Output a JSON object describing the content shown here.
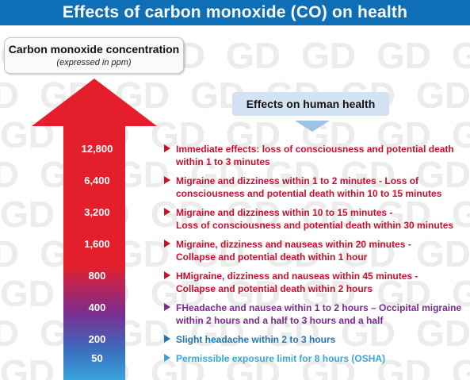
{
  "title": "Effects of carbon monoxide (CO) on health",
  "concentration_box": {
    "title": "Carbon monoxide concentration",
    "subtitle": "(expressed in ppm)"
  },
  "effects_box": {
    "label": "Effects on human health"
  },
  "watermark_text": "GD",
  "colors": {
    "title_bar": "#0f6fb6",
    "red_text": "#c8102e",
    "purple_text": "#7b2a8e",
    "blue_text": "#1f74b3",
    "light_blue_text": "#3aa6d8",
    "arrow_top": "#e41f2b",
    "arrow_mid": "#7a2d91",
    "arrow_bottom": "#39a4dd"
  },
  "levels": [
    {
      "ppm": "12,800",
      "lines": [
        "Immediate effects: loss of consciousness and potential death",
        "within 1 to 3 minutes"
      ],
      "color": "#c8102e"
    },
    {
      "ppm": "6,400",
      "lines": [
        "Migraine and dizziness within 1 to 2 minutes - Loss of",
        "consciousness and potential death within 10 to 15 minutes"
      ],
      "color": "#c8102e"
    },
    {
      "ppm": "3,200",
      "lines": [
        "Migraine and dizziness within 10 to 15 minutes -",
        "Loss of consciousness and potential death within 30 minutes"
      ],
      "color": "#c8102e"
    },
    {
      "ppm": "1,600",
      "lines": [
        "Migraine, dizziness and nauseas within 20 minutes -",
        "Collapse and potential death within 1 hour"
      ],
      "color": "#c8102e"
    },
    {
      "ppm": "800",
      "lines": [
        "HMigraine, dizziness and nauseas within 45 minutes -",
        "Collapse and potential death within 2 hours"
      ],
      "color": "#c8102e"
    },
    {
      "ppm": "400",
      "lines": [
        "FHeadache and nausea within 1 to 2 hours – Occipital migraine",
        "within 2 hours and a half to 3 hours and a half"
      ],
      "color": "#7b2a8e"
    },
    {
      "ppm": "200",
      "lines": [
        "Slight headache within 2 to 3 hours"
      ],
      "color": "#1f74b3"
    },
    {
      "ppm": "50",
      "lines": [
        "Permissible exposure limit for 8 hours (OSHA)"
      ],
      "color": "#3aa6d8"
    }
  ]
}
